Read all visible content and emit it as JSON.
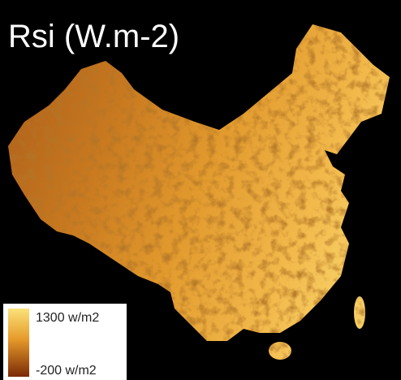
{
  "title": "Rsi (W.m-2)",
  "legend": {
    "max": "1300 w/m2",
    "min": "-200 w/m2"
  }
}
